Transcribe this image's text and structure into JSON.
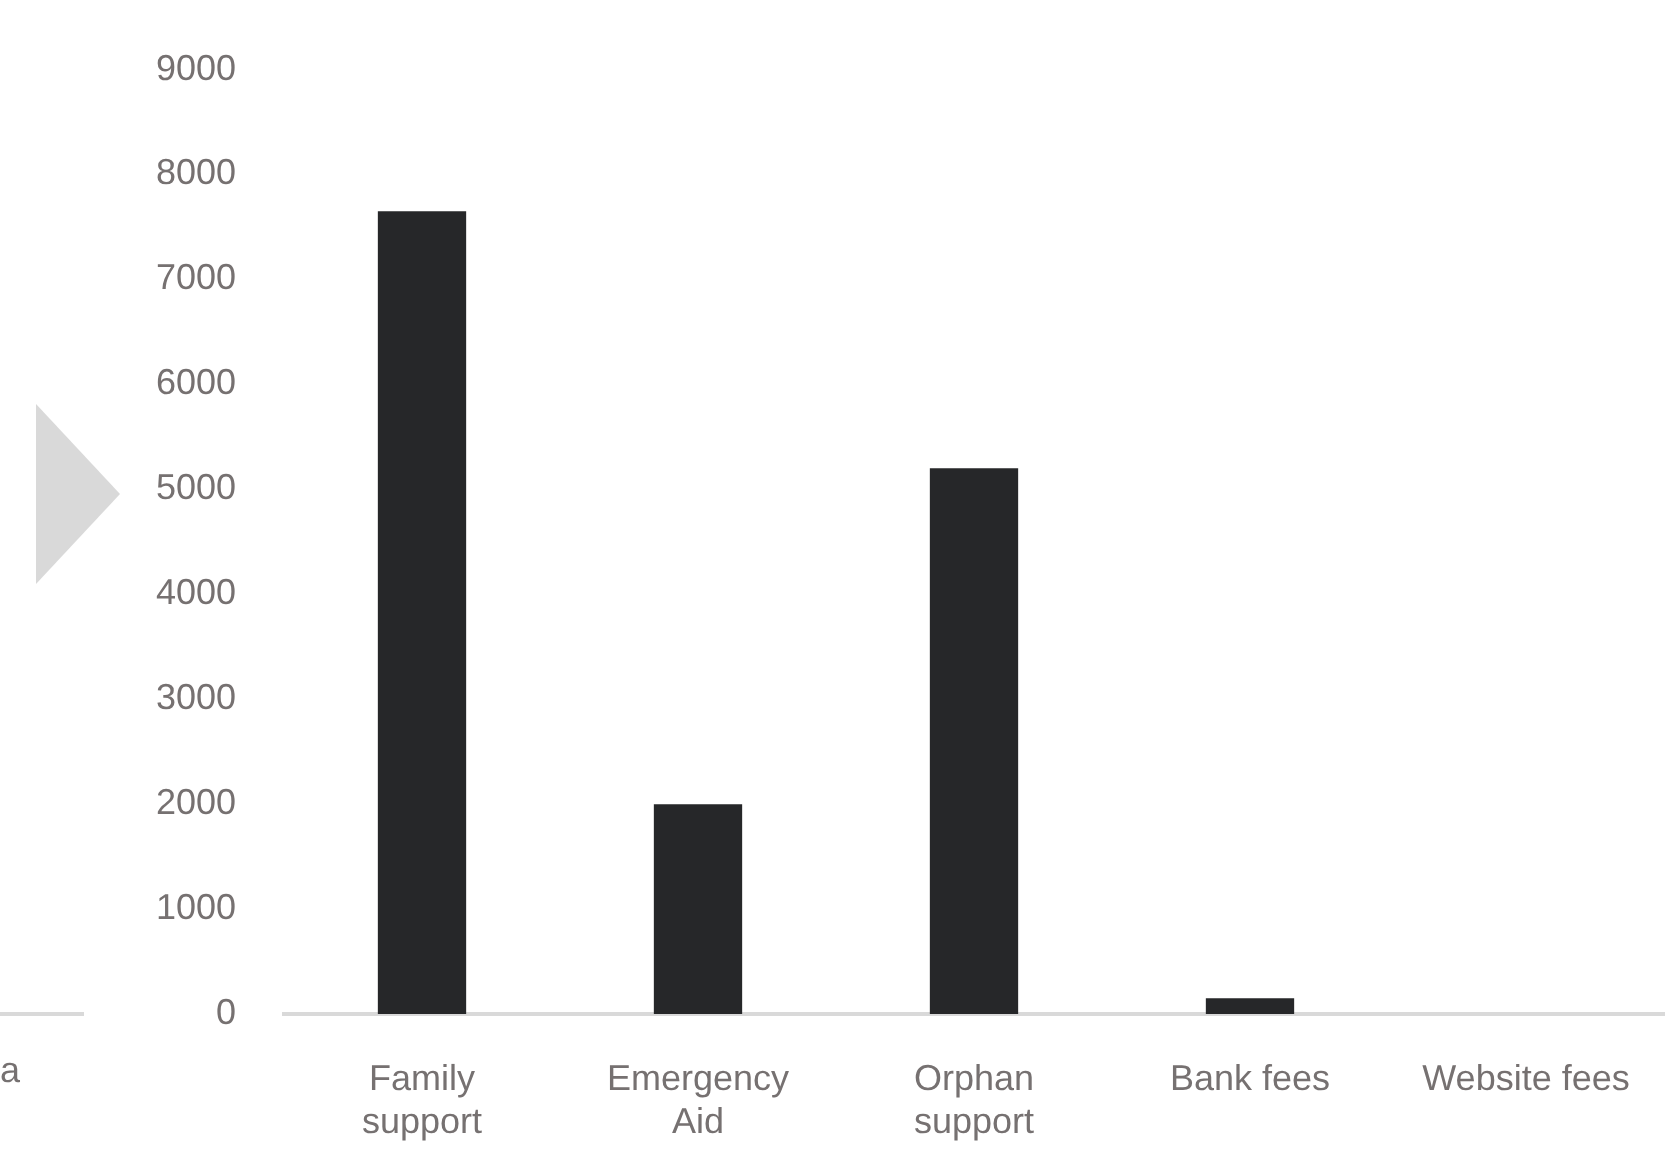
{
  "chart_data": {
    "type": "bar",
    "categories": [
      "Family support",
      "Emergency Aid",
      "Orphan support",
      "Bank fees",
      "Website fees"
    ],
    "values": [
      7650,
      2000,
      5200,
      150,
      0
    ],
    "color": "#262729",
    "ylim": [
      0,
      9000
    ],
    "yticks": [
      0,
      1000,
      2000,
      3000,
      4000,
      5000,
      6000,
      7000,
      8000,
      9000
    ],
    "grid": false,
    "legend": false,
    "annotations": [
      "a"
    ]
  }
}
